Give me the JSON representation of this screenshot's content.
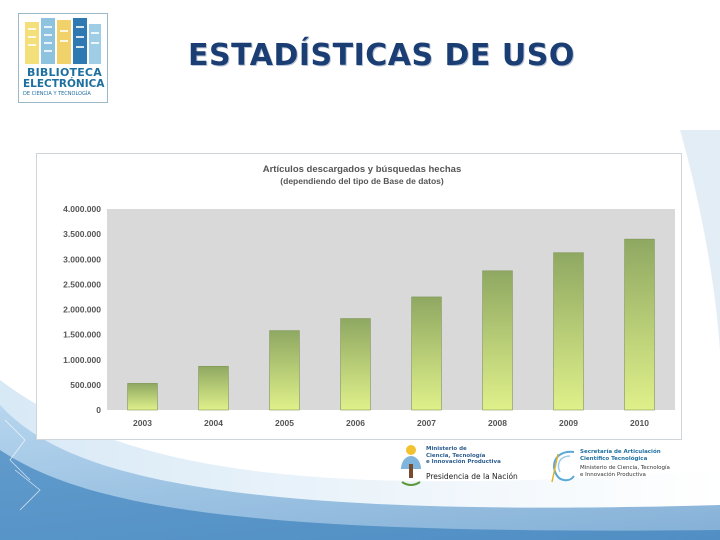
{
  "header": {
    "title": "ESTADÍSTICAS DE USO",
    "logo": {
      "line1": "BIBLIOTECA",
      "line2": "ELECTRÓNICA",
      "line3": "DE CIENCIA Y TECNOLOGÍA"
    }
  },
  "chart_data": {
    "type": "bar",
    "title": "Artículos descargados y búsquedas hechas",
    "subtitle": "(dependiendo del tipo de Base de datos)",
    "categories": [
      "2003",
      "2004",
      "2005",
      "2006",
      "2007",
      "2008",
      "2009",
      "2010"
    ],
    "values": [
      530000,
      870000,
      1580000,
      1820000,
      2250000,
      2770000,
      3130000,
      3400000
    ],
    "y_ticks": [
      0,
      500000,
      1000000,
      1500000,
      2000000,
      2500000,
      3000000,
      3500000,
      4000000
    ],
    "y_tick_labels": [
      "0",
      "500.000",
      "1.000.000",
      "1.500.000",
      "2.000.000",
      "2.500.000",
      "3.000.000",
      "3.500.000",
      "4.000.000"
    ],
    "ylim": [
      0,
      4000000
    ],
    "xlabel": "",
    "ylabel": "",
    "grid": false,
    "colors": {
      "bar_top": "#8fa862",
      "bar_bottom": "#dff08a",
      "plot_bg": "#d9d9d9",
      "tick_text": "#555555"
    }
  },
  "footer": {
    "ministry": {
      "lines": [
        "Ministerio de",
        "Ciencia, Tecnología",
        "e Innovación Productiva"
      ],
      "main": "Presidencia de la Nación"
    },
    "secretaria": {
      "lines": [
        "Secretaría de Articulación",
        "Científico Tecnológica"
      ],
      "sub": [
        "Ministerio de Ciencia, Tecnología",
        "e Innovación Productiva"
      ]
    }
  }
}
